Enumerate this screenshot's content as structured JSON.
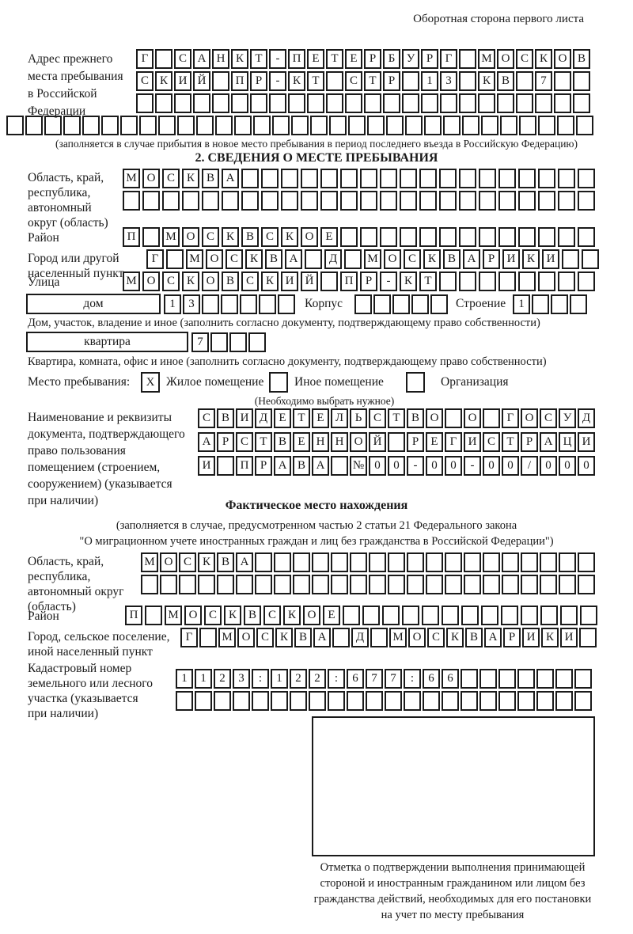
{
  "page": {
    "header_note": "Оборотная сторона первого листа"
  },
  "prev_address": {
    "label": "Адрес прежнего\nместа пребывания\nв Российской\nФедерации",
    "rows": [
      [
        "Г",
        "",
        "С",
        "А",
        "Н",
        "К",
        "Т",
        "-",
        "П",
        "Е",
        "Т",
        "Е",
        "Р",
        "Б",
        "У",
        "Р",
        "Г",
        "",
        "М",
        "О",
        "С",
        "К",
        "О",
        "В"
      ],
      [
        "С",
        "К",
        "И",
        "Й",
        "",
        "П",
        "Р",
        "-",
        "К",
        "Т",
        "",
        "С",
        "Т",
        "Р",
        "",
        "1",
        "3",
        "",
        "К",
        "В",
        "",
        "7",
        "",
        ""
      ],
      [
        "",
        "",
        "",
        "",
        "",
        "",
        "",
        "",
        "",
        "",
        "",
        "",
        "",
        "",
        "",
        "",
        "",
        "",
        "",
        "",
        "",
        "",
        "",
        ""
      ],
      [
        "",
        "",
        "",
        "",
        "",
        "",
        "",
        "",
        "",
        "",
        "",
        "",
        "",
        "",
        "",
        "",
        "",
        "",
        "",
        "",
        "",
        "",
        "",
        "",
        "",
        "",
        "",
        "",
        "",
        "",
        ""
      ]
    ],
    "note": "(заполняется в случае прибытия в новое место пребывания в период последнего въезда в Российскую Федерацию)"
  },
  "section2": {
    "title": "2. СВЕДЕНИЯ О МЕСТЕ ПРЕБЫВАНИЯ",
    "region": {
      "label": "Область, край,\nреспублика,\nавтономный\nокруг (область)",
      "rows": [
        [
          "М",
          "О",
          "С",
          "К",
          "В",
          "А",
          "",
          "",
          "",
          "",
          "",
          "",
          "",
          "",
          "",
          "",
          "",
          "",
          "",
          "",
          "",
          "",
          "",
          ""
        ],
        [
          "",
          "",
          "",
          "",
          "",
          "",
          "",
          "",
          "",
          "",
          "",
          "",
          "",
          "",
          "",
          "",
          "",
          "",
          "",
          "",
          "",
          "",
          "",
          ""
        ]
      ]
    },
    "district": {
      "label": "Район",
      "row": [
        "П",
        "",
        "М",
        "О",
        "С",
        "К",
        "В",
        "С",
        "К",
        "О",
        "Е",
        "",
        "",
        "",
        "",
        "",
        "",
        "",
        "",
        "",
        "",
        "",
        "",
        ""
      ]
    },
    "city": {
      "label": "Город или другой\nнаселенный пункт",
      "row": [
        "Г",
        "",
        "М",
        "О",
        "С",
        "К",
        "В",
        "А",
        "",
        "Д",
        "",
        "М",
        "О",
        "С",
        "К",
        "В",
        "А",
        "Р",
        "И",
        "К",
        "И",
        "",
        ""
      ]
    },
    "street": {
      "label": "Улица",
      "row": [
        "М",
        "О",
        "С",
        "К",
        "О",
        "В",
        "С",
        "К",
        "И",
        "Й",
        "",
        "П",
        "Р",
        "-",
        "К",
        "Т",
        "",
        "",
        "",
        "",
        "",
        "",
        "",
        ""
      ]
    },
    "house": {
      "label": "дом",
      "cells": [
        "1",
        "3",
        "",
        "",
        "",
        "",
        ""
      ],
      "korpus_label": "Корпус",
      "korpus_cells": [
        "",
        "",
        "",
        "",
        ""
      ],
      "stroenie_label": "Строение",
      "stroenie_cells": [
        "1",
        "",
        "",
        ""
      ]
    },
    "house_note": "Дом, участок, владение и иное (заполнить согласно документу, подтверждающему право собственности)",
    "apartment": {
      "label": "квартира",
      "cells": [
        "7",
        "",
        "",
        ""
      ]
    },
    "apartment_note": "Квартира, комната, офис и иное (заполнить согласно документу, подтверждающему право собственности)",
    "stay_type": {
      "label": "Место пребывания:",
      "options": [
        {
          "mark": "X",
          "label": "Жилое помещение"
        },
        {
          "mark": "",
          "label": "Иное помещение"
        },
        {
          "mark": "",
          "label": "Организация"
        }
      ],
      "note": "(Необходимо выбрать нужное)"
    },
    "doc": {
      "label": "Наименование и реквизиты\nдокумента, подтверждающего\nправо пользования\nпомещением (строением,\nсооружением) (указывается\nпри наличии)",
      "rows": [
        [
          "С",
          "В",
          "И",
          "Д",
          "Е",
          "Т",
          "Е",
          "Л",
          "Ь",
          "С",
          "Т",
          "В",
          "О",
          "",
          "О",
          "",
          "Г",
          "О",
          "С",
          "У",
          "Д"
        ],
        [
          "А",
          "Р",
          "С",
          "Т",
          "В",
          "Е",
          "Н",
          "Н",
          "О",
          "Й",
          "",
          "Р",
          "Е",
          "Г",
          "И",
          "С",
          "Т",
          "Р",
          "А",
          "Ц",
          "И"
        ],
        [
          "И",
          "",
          "П",
          "Р",
          "А",
          "В",
          "А",
          "",
          "№",
          "0",
          "0",
          "-",
          "0",
          "0",
          "-",
          "0",
          "0",
          "/",
          "0",
          "0",
          "0"
        ]
      ]
    }
  },
  "actual_location": {
    "title": "Фактическое место нахождения",
    "note_line1": "(заполняется в случае, предусмотренном частью 2 статьи 21 Федерального закона",
    "note_line2": "\"О миграционном учете иностранных граждан и лиц без гражданства в Российской Федерации\")",
    "region": {
      "label": "Область, край,\nреспублика,\nавтономный округ\n(область)",
      "rows": [
        [
          "М",
          "О",
          "С",
          "К",
          "В",
          "А",
          "",
          "",
          "",
          "",
          "",
          "",
          "",
          "",
          "",
          "",
          "",
          "",
          "",
          "",
          "",
          "",
          "",
          ""
        ],
        [
          "",
          "",
          "",
          "",
          "",
          "",
          "",
          "",
          "",
          "",
          "",
          "",
          "",
          "",
          "",
          "",
          "",
          "",
          "",
          "",
          "",
          "",
          "",
          ""
        ]
      ]
    },
    "district": {
      "label": "Район",
      "row": [
        "П",
        "",
        "М",
        "О",
        "С",
        "К",
        "В",
        "С",
        "К",
        "О",
        "Е",
        "",
        "",
        "",
        "",
        "",
        "",
        "",
        "",
        "",
        "",
        "",
        "",
        ""
      ]
    },
    "city": {
      "label": "Город, сельское поселение,\nиной населенный пункт",
      "row": [
        "Г",
        "",
        "М",
        "О",
        "С",
        "К",
        "В",
        "А",
        "",
        "Д",
        "",
        "М",
        "О",
        "С",
        "К",
        "В",
        "А",
        "Р",
        "И",
        "К",
        "И",
        ""
      ]
    },
    "cadastral": {
      "label": "Кадастровый номер\nземельного или лесного\nучастка (указывается\nпри наличии)",
      "rows": [
        [
          "1",
          "1",
          "2",
          "3",
          ":",
          "1",
          "2",
          "2",
          ":",
          "6",
          "7",
          "7",
          ":",
          "6",
          "6",
          "",
          "",
          "",
          "",
          "",
          "",
          ""
        ],
        [
          "",
          "",
          "",
          "",
          "",
          "",
          "",
          "",
          "",
          "",
          "",
          "",
          "",
          "",
          "",
          "",
          "",
          "",
          "",
          "",
          "",
          ""
        ]
      ]
    },
    "stamp_caption": "Отметка о подтверждении выполнения принимающей стороной и иностранным гражданином или лицом без гражданства действий, необходимых для его постановки на учет по месту пребывания"
  }
}
